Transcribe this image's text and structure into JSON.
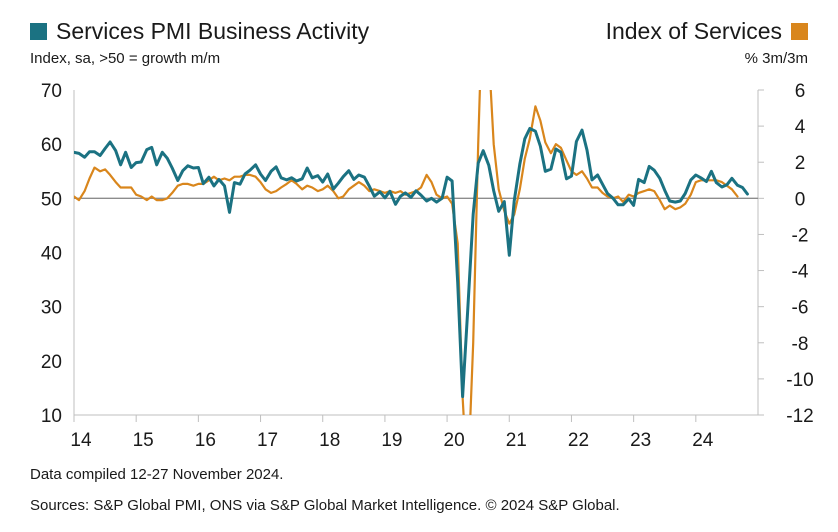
{
  "chart_data": {
    "type": "line",
    "series": [
      {
        "name": "Services PMI Business Activity",
        "axis": "left",
        "color": "#1b7282",
        "points": [
          [
            14.0,
            58.5
          ],
          [
            14.08,
            58.3
          ],
          [
            14.17,
            57.6
          ],
          [
            14.25,
            58.6
          ],
          [
            14.33,
            58.6
          ],
          [
            14.42,
            57.9
          ],
          [
            14.5,
            59.2
          ],
          [
            14.58,
            60.4
          ],
          [
            14.67,
            58.8
          ],
          [
            14.75,
            56.2
          ],
          [
            14.83,
            58.5
          ],
          [
            14.92,
            55.7
          ],
          [
            15.0,
            56.6
          ],
          [
            15.08,
            56.7
          ],
          [
            15.17,
            59.0
          ],
          [
            15.25,
            59.4
          ],
          [
            15.33,
            56.2
          ],
          [
            15.42,
            58.5
          ],
          [
            15.5,
            57.4
          ],
          [
            15.58,
            55.6
          ],
          [
            15.67,
            53.3
          ],
          [
            15.75,
            55.1
          ],
          [
            15.83,
            56.0
          ],
          [
            15.92,
            55.6
          ],
          [
            16.0,
            55.7
          ],
          [
            16.08,
            52.7
          ],
          [
            16.17,
            53.9
          ],
          [
            16.25,
            52.3
          ],
          [
            16.33,
            53.5
          ],
          [
            16.42,
            52.3
          ],
          [
            16.5,
            47.4
          ],
          [
            16.58,
            52.9
          ],
          [
            16.67,
            52.6
          ],
          [
            16.75,
            54.5
          ],
          [
            16.83,
            55.2
          ],
          [
            16.92,
            56.2
          ],
          [
            17.0,
            54.5
          ],
          [
            17.08,
            53.3
          ],
          [
            17.17,
            55.0
          ],
          [
            17.25,
            55.8
          ],
          [
            17.33,
            53.8
          ],
          [
            17.42,
            53.4
          ],
          [
            17.5,
            53.8
          ],
          [
            17.58,
            53.2
          ],
          [
            17.67,
            53.6
          ],
          [
            17.75,
            55.6
          ],
          [
            17.83,
            53.8
          ],
          [
            17.92,
            54.2
          ],
          [
            18.0,
            53.0
          ],
          [
            18.08,
            54.5
          ],
          [
            18.17,
            51.7
          ],
          [
            18.25,
            52.8
          ],
          [
            18.33,
            54.0
          ],
          [
            18.42,
            55.1
          ],
          [
            18.5,
            53.5
          ],
          [
            18.58,
            54.3
          ],
          [
            18.67,
            53.9
          ],
          [
            18.75,
            52.2
          ],
          [
            18.83,
            50.4
          ],
          [
            18.92,
            51.2
          ],
          [
            19.0,
            50.1
          ],
          [
            19.08,
            51.3
          ],
          [
            19.17,
            48.9
          ],
          [
            19.25,
            50.4
          ],
          [
            19.33,
            51.0
          ],
          [
            19.42,
            50.2
          ],
          [
            19.5,
            51.4
          ],
          [
            19.58,
            50.6
          ],
          [
            19.67,
            49.5
          ],
          [
            19.75,
            50.0
          ],
          [
            19.83,
            49.3
          ],
          [
            19.92,
            50.0
          ],
          [
            20.0,
            53.9
          ],
          [
            20.08,
            53.2
          ],
          [
            20.17,
            34.5
          ],
          [
            20.25,
            13.4
          ],
          [
            20.33,
            29.0
          ],
          [
            20.42,
            47.1
          ],
          [
            20.5,
            56.5
          ],
          [
            20.58,
            58.8
          ],
          [
            20.67,
            56.1
          ],
          [
            20.75,
            51.4
          ],
          [
            20.83,
            47.6
          ],
          [
            20.92,
            49.4
          ],
          [
            21.0,
            39.5
          ],
          [
            21.08,
            49.5
          ],
          [
            21.17,
            56.3
          ],
          [
            21.25,
            61.0
          ],
          [
            21.33,
            62.9
          ],
          [
            21.42,
            62.4
          ],
          [
            21.5,
            59.6
          ],
          [
            21.58,
            55.0
          ],
          [
            21.67,
            55.4
          ],
          [
            21.75,
            59.1
          ],
          [
            21.83,
            58.5
          ],
          [
            21.92,
            53.6
          ],
          [
            22.0,
            54.1
          ],
          [
            22.08,
            60.5
          ],
          [
            22.17,
            62.6
          ],
          [
            22.25,
            58.9
          ],
          [
            22.33,
            53.4
          ],
          [
            22.42,
            54.3
          ],
          [
            22.5,
            52.6
          ],
          [
            22.58,
            50.9
          ],
          [
            22.67,
            50.0
          ],
          [
            22.75,
            48.8
          ],
          [
            22.83,
            48.8
          ],
          [
            22.92,
            49.9
          ],
          [
            23.0,
            48.7
          ],
          [
            23.08,
            53.5
          ],
          [
            23.17,
            52.9
          ],
          [
            23.25,
            55.9
          ],
          [
            23.33,
            55.2
          ],
          [
            23.42,
            53.7
          ],
          [
            23.5,
            51.5
          ],
          [
            23.58,
            49.5
          ],
          [
            23.67,
            49.3
          ],
          [
            23.75,
            49.5
          ],
          [
            23.83,
            50.9
          ],
          [
            23.92,
            53.4
          ],
          [
            24.0,
            54.3
          ],
          [
            24.08,
            53.8
          ],
          [
            24.17,
            53.1
          ],
          [
            24.25,
            55.0
          ],
          [
            24.33,
            52.9
          ],
          [
            24.42,
            52.1
          ],
          [
            24.5,
            52.5
          ],
          [
            24.58,
            53.7
          ],
          [
            24.67,
            52.4
          ],
          [
            24.75,
            52.0
          ],
          [
            24.83,
            50.8
          ]
        ]
      },
      {
        "name": "Index of Services",
        "axis": "right",
        "color": "#d9861c",
        "points": [
          [
            14.0,
            0.1
          ],
          [
            14.08,
            -0.1
          ],
          [
            14.17,
            0.4
          ],
          [
            14.25,
            1.1
          ],
          [
            14.33,
            1.7
          ],
          [
            14.42,
            1.5
          ],
          [
            14.5,
            1.6
          ],
          [
            14.58,
            1.3
          ],
          [
            14.67,
            0.9
          ],
          [
            14.75,
            0.6
          ],
          [
            14.83,
            0.6
          ],
          [
            14.92,
            0.6
          ],
          [
            15.0,
            0.2
          ],
          [
            15.08,
            0.1
          ],
          [
            15.17,
            -0.1
          ],
          [
            15.25,
            0.1
          ],
          [
            15.33,
            -0.1
          ],
          [
            15.42,
            -0.1
          ],
          [
            15.5,
            0.0
          ],
          [
            15.58,
            0.3
          ],
          [
            15.67,
            0.7
          ],
          [
            15.75,
            0.8
          ],
          [
            15.83,
            0.8
          ],
          [
            15.92,
            0.7
          ],
          [
            16.0,
            0.8
          ],
          [
            16.08,
            0.8
          ],
          [
            16.17,
            1.0
          ],
          [
            16.25,
            1.2
          ],
          [
            16.33,
            1.0
          ],
          [
            16.42,
            1.1
          ],
          [
            16.5,
            1.0
          ],
          [
            16.58,
            1.2
          ],
          [
            16.67,
            1.2
          ],
          [
            16.75,
            1.3
          ],
          [
            16.83,
            1.3
          ],
          [
            16.92,
            1.2
          ],
          [
            17.0,
            0.9
          ],
          [
            17.08,
            0.5
          ],
          [
            17.17,
            0.3
          ],
          [
            17.25,
            0.4
          ],
          [
            17.33,
            0.6
          ],
          [
            17.42,
            0.8
          ],
          [
            17.5,
            1.0
          ],
          [
            17.58,
            0.8
          ],
          [
            17.67,
            0.5
          ],
          [
            17.75,
            0.7
          ],
          [
            17.83,
            0.6
          ],
          [
            17.92,
            0.4
          ],
          [
            18.0,
            0.5
          ],
          [
            18.08,
            0.7
          ],
          [
            18.17,
            0.4
          ],
          [
            18.25,
            0.0
          ],
          [
            18.33,
            0.1
          ],
          [
            18.42,
            0.5
          ],
          [
            18.5,
            0.7
          ],
          [
            18.58,
            0.9
          ],
          [
            18.67,
            0.7
          ],
          [
            18.75,
            0.4
          ],
          [
            18.83,
            0.5
          ],
          [
            18.92,
            0.4
          ],
          [
            19.0,
            0.3
          ],
          [
            19.08,
            0.4
          ],
          [
            19.17,
            0.3
          ],
          [
            19.25,
            0.4
          ],
          [
            19.33,
            0.2
          ],
          [
            19.42,
            0.3
          ],
          [
            19.5,
            0.4
          ],
          [
            19.58,
            0.6
          ],
          [
            19.67,
            1.3
          ],
          [
            19.75,
            0.9
          ],
          [
            19.83,
            0.2
          ],
          [
            19.92,
            0.0
          ],
          [
            20.0,
            0.1
          ],
          [
            20.08,
            -0.3
          ],
          [
            20.17,
            -2.5
          ],
          [
            20.25,
            -11.0
          ],
          [
            20.33,
            -16.0
          ],
          [
            20.42,
            -8.0
          ],
          [
            20.5,
            3.0
          ],
          [
            20.58,
            12.0
          ],
          [
            20.67,
            8.0
          ],
          [
            20.75,
            3.0
          ],
          [
            20.83,
            0.5
          ],
          [
            20.92,
            -0.7
          ],
          [
            21.0,
            -1.4
          ],
          [
            21.08,
            -0.9
          ],
          [
            21.17,
            0.5
          ],
          [
            21.25,
            2.2
          ],
          [
            21.33,
            3.3
          ],
          [
            21.42,
            5.1
          ],
          [
            21.5,
            4.3
          ],
          [
            21.58,
            3.1
          ],
          [
            21.67,
            2.5
          ],
          [
            21.75,
            3.0
          ],
          [
            21.83,
            2.8
          ],
          [
            21.92,
            2.1
          ],
          [
            22.0,
            1.5
          ],
          [
            22.08,
            1.3
          ],
          [
            22.17,
            1.5
          ],
          [
            22.25,
            1.1
          ],
          [
            22.33,
            0.6
          ],
          [
            22.42,
            0.6
          ],
          [
            22.5,
            0.3
          ],
          [
            22.58,
            0.1
          ],
          [
            22.67,
            0.0
          ],
          [
            22.75,
            0.1
          ],
          [
            22.83,
            -0.2
          ],
          [
            22.92,
            0.2
          ],
          [
            23.0,
            0.1
          ],
          [
            23.08,
            0.3
          ],
          [
            23.17,
            0.4
          ],
          [
            23.25,
            0.5
          ],
          [
            23.33,
            0.4
          ],
          [
            23.42,
            -0.1
          ],
          [
            23.5,
            -0.6
          ],
          [
            23.58,
            -0.4
          ],
          [
            23.67,
            -0.6
          ],
          [
            23.75,
            -0.5
          ],
          [
            23.83,
            -0.3
          ],
          [
            23.92,
            0.2
          ],
          [
            24.0,
            0.9
          ],
          [
            24.08,
            1.0
          ],
          [
            24.17,
            1.0
          ],
          [
            24.25,
            1.0
          ],
          [
            24.33,
            1.0
          ],
          [
            24.42,
            0.9
          ],
          [
            24.5,
            0.7
          ],
          [
            24.58,
            0.5
          ],
          [
            24.67,
            0.1
          ]
        ]
      }
    ],
    "x_tick_labels": [
      "14",
      "15",
      "16",
      "17",
      "18",
      "19",
      "20",
      "21",
      "22",
      "23",
      "24"
    ],
    "x_tick_values": [
      14,
      15,
      16,
      17,
      18,
      19,
      20,
      21,
      22,
      23,
      24
    ],
    "xlim": [
      14.0,
      25.0
    ],
    "y_left": {
      "label": "Index, sa, >50 = growth m/m",
      "lim": [
        10,
        70
      ],
      "ticks": [
        10,
        20,
        30,
        40,
        50,
        60,
        70
      ],
      "tick_labels": [
        "10",
        "20",
        "30",
        "40",
        "50",
        "60",
        "70"
      ]
    },
    "y_right": {
      "label": "% 3m/3m",
      "lim": [
        -12,
        6
      ],
      "ticks": [
        -12,
        -10,
        -8,
        -6,
        -4,
        -2,
        0,
        2,
        4,
        6
      ],
      "tick_labels": [
        "-12",
        "-10",
        "-8",
        "-6",
        "-4",
        "-2",
        "0",
        "2",
        "4",
        "6"
      ]
    },
    "grid": false
  },
  "legend": {
    "left": {
      "label": "Services PMI Business Activity",
      "color": "#1b7282"
    },
    "right": {
      "label": "Index of Services",
      "color": "#d9861c"
    }
  },
  "axis_titles": {
    "left": "Index, sa, >50 = growth m/m",
    "right": "% 3m/3m"
  },
  "footnotes": {
    "compiled": "Data compiled 12-27 November 2024.",
    "sources": "Sources: S&P Global PMI, ONS via S&P Global Market Intelligence. © 2024 S&P Global."
  }
}
